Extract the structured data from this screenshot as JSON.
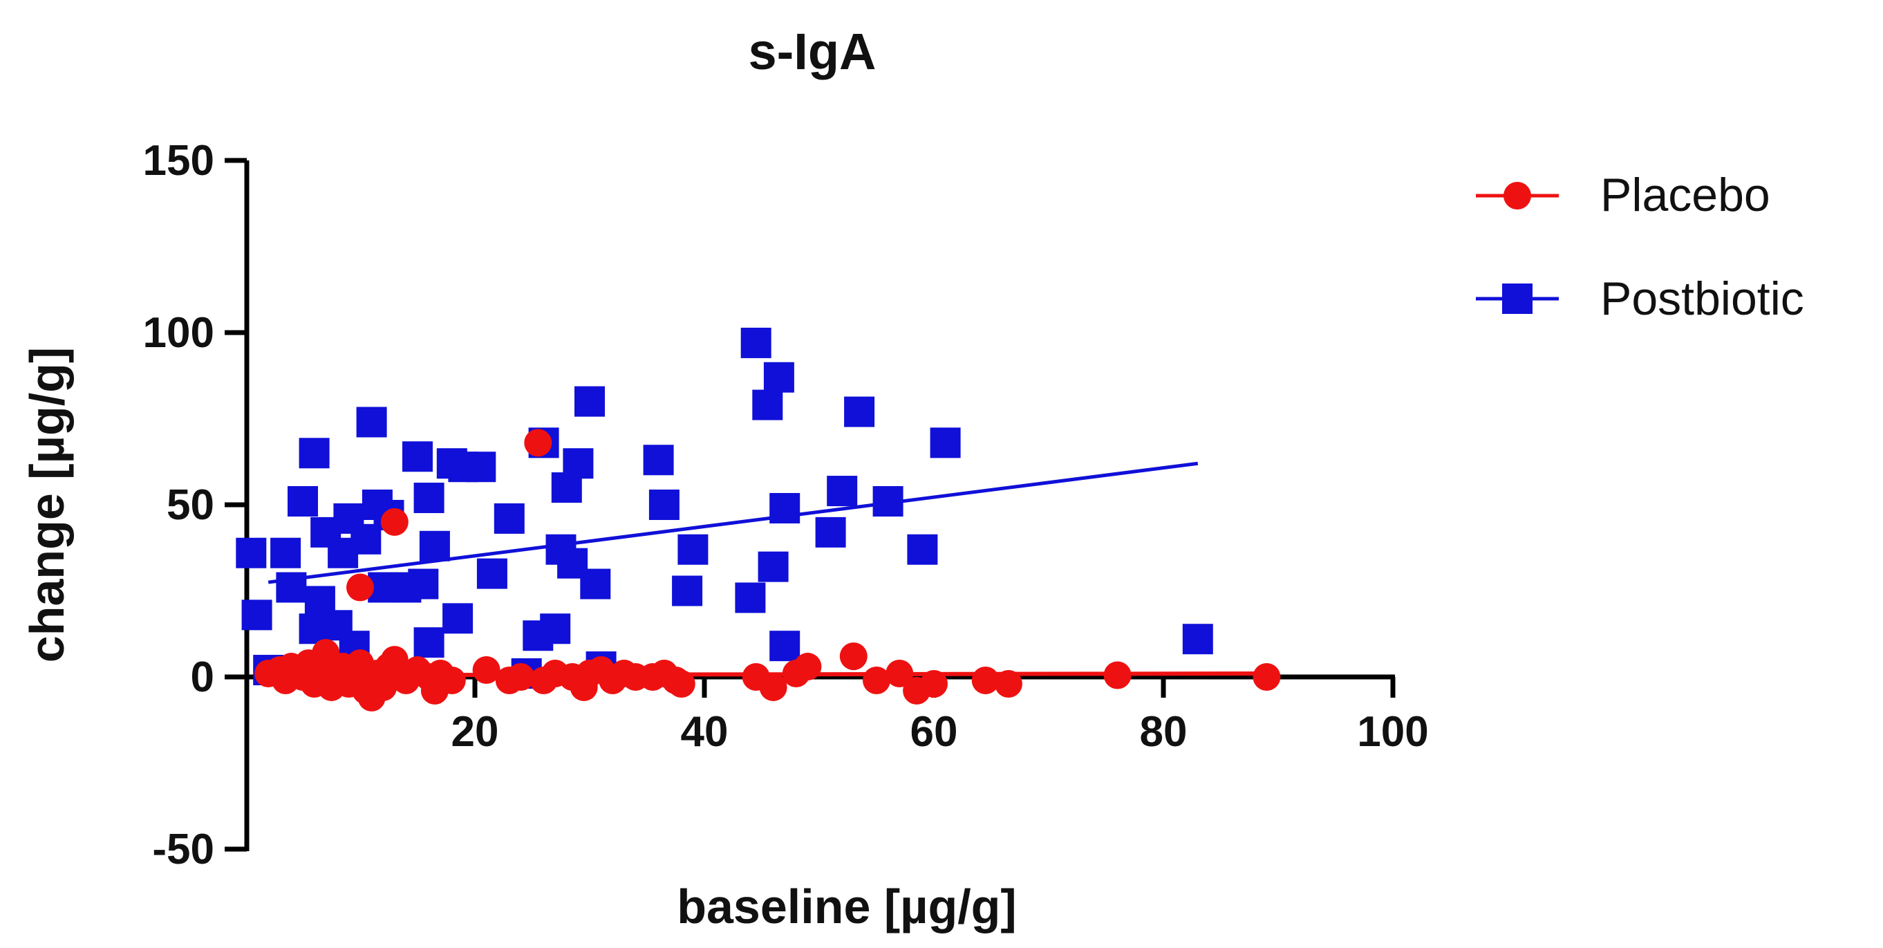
{
  "chart_data": {
    "type": "scatter",
    "title": "s-IgA",
    "xlabel": "baseline [µg/g]",
    "ylabel": "change [µg/g]",
    "xlim": [
      0,
      100
    ],
    "ylim": [
      -50,
      150
    ],
    "x_ticks": [
      20,
      40,
      60,
      80,
      100
    ],
    "y_ticks": [
      -50,
      0,
      50,
      100,
      150
    ],
    "x_tick_labels": [
      "20",
      "40",
      "60",
      "80",
      "100"
    ],
    "y_tick_labels": [
      "-50",
      "0",
      "50",
      "100",
      "150"
    ],
    "legend_position": "top-right",
    "series": [
      {
        "name": "Placebo",
        "color": "#ee1111",
        "marker": "circle",
        "trend": {
          "x": [
            2,
            89
          ],
          "y": [
            0.5,
            1
          ]
        },
        "points": [
          [
            13,
            45
          ],
          [
            10,
            26
          ],
          [
            25.5,
            68
          ],
          [
            2,
            1
          ],
          [
            3,
            2
          ],
          [
            3.5,
            -1
          ],
          [
            4,
            3
          ],
          [
            5,
            0
          ],
          [
            5.5,
            4
          ],
          [
            6,
            -2
          ],
          [
            6.5,
            2
          ],
          [
            7,
            7
          ],
          [
            7.5,
            -3
          ],
          [
            8,
            1
          ],
          [
            8.5,
            3
          ],
          [
            9,
            -2
          ],
          [
            9.5,
            0
          ],
          [
            10,
            4
          ],
          [
            10.5,
            -4
          ],
          [
            11,
            -6
          ],
          [
            11.5,
            1
          ],
          [
            12,
            -3
          ],
          [
            12.5,
            3
          ],
          [
            13,
            5
          ],
          [
            14,
            -1
          ],
          [
            15,
            2
          ],
          [
            16,
            0
          ],
          [
            16.5,
            -4
          ],
          [
            17,
            1
          ],
          [
            18,
            -1
          ],
          [
            21,
            2
          ],
          [
            23,
            -1
          ],
          [
            24,
            0
          ],
          [
            26,
            -1
          ],
          [
            27,
            1
          ],
          [
            28.5,
            0
          ],
          [
            29.5,
            -3
          ],
          [
            30,
            1
          ],
          [
            31,
            2
          ],
          [
            32,
            -1
          ],
          [
            33,
            1
          ],
          [
            34,
            0
          ],
          [
            35.5,
            0
          ],
          [
            36.5,
            1
          ],
          [
            37.5,
            -1
          ],
          [
            38,
            -2
          ],
          [
            44.5,
            0
          ],
          [
            46,
            -3
          ],
          [
            48,
            1
          ],
          [
            49,
            3
          ],
          [
            53,
            6
          ],
          [
            55,
            -1
          ],
          [
            57,
            1
          ],
          [
            58.5,
            -4
          ],
          [
            60,
            -2
          ],
          [
            64.5,
            -1
          ],
          [
            66.5,
            -2
          ],
          [
            76,
            0.5
          ],
          [
            89,
            0
          ]
        ]
      },
      {
        "name": "Postbiotic",
        "color": "#1010d8",
        "marker": "square",
        "trend": {
          "x": [
            2,
            83
          ],
          "y": [
            27.5,
            62
          ]
        },
        "points": [
          [
            0.5,
            36
          ],
          [
            1,
            18
          ],
          [
            2,
            2
          ],
          [
            3.5,
            36
          ],
          [
            4,
            26
          ],
          [
            5,
            51
          ],
          [
            6,
            14
          ],
          [
            6,
            65
          ],
          [
            6.5,
            22
          ],
          [
            7,
            42
          ],
          [
            8,
            15
          ],
          [
            8.5,
            36
          ],
          [
            9,
            46
          ],
          [
            9.5,
            9
          ],
          [
            10.5,
            40
          ],
          [
            11,
            74
          ],
          [
            11.5,
            50
          ],
          [
            12,
            26
          ],
          [
            12.5,
            47
          ],
          [
            14,
            26
          ],
          [
            15,
            64
          ],
          [
            15.5,
            27
          ],
          [
            16,
            52
          ],
          [
            16,
            10
          ],
          [
            16.5,
            38
          ],
          [
            18,
            62
          ],
          [
            18.5,
            17
          ],
          [
            19,
            61
          ],
          [
            20.5,
            61
          ],
          [
            21.5,
            30
          ],
          [
            23,
            46
          ],
          [
            24.5,
            1
          ],
          [
            25.5,
            12
          ],
          [
            26,
            68
          ],
          [
            27,
            14
          ],
          [
            27.5,
            37
          ],
          [
            28,
            55
          ],
          [
            28.5,
            33
          ],
          [
            29,
            62
          ],
          [
            30,
            80
          ],
          [
            30.5,
            27
          ],
          [
            31,
            3
          ],
          [
            36,
            63
          ],
          [
            36.5,
            50
          ],
          [
            38.5,
            25
          ],
          [
            39,
            37
          ],
          [
            44,
            23
          ],
          [
            44.5,
            97
          ],
          [
            45.5,
            79
          ],
          [
            46,
            32
          ],
          [
            46.5,
            87
          ],
          [
            47,
            9
          ],
          [
            47,
            49
          ],
          [
            51,
            42
          ],
          [
            52,
            54
          ],
          [
            53.5,
            77
          ],
          [
            56,
            51
          ],
          [
            59,
            37
          ],
          [
            61,
            68
          ],
          [
            83,
            11
          ]
        ]
      }
    ]
  }
}
